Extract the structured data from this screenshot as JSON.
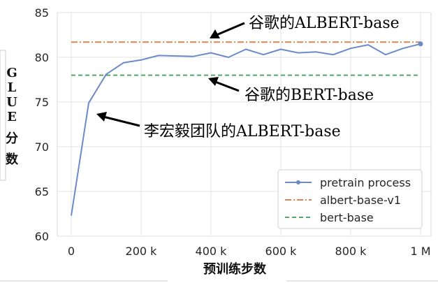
{
  "chart_data": {
    "type": "line",
    "xlabel": "预训练步数",
    "ylabel": "GLUE分数",
    "ylabel_chars": [
      "G",
      "L",
      "U",
      "E",
      "分",
      "数"
    ],
    "xlim": [
      -40000,
      1030000
    ],
    "ylim": [
      60,
      85
    ],
    "grid": true,
    "legend_position": "lower-right",
    "x_ticks": [
      0,
      200000,
      400000,
      600000,
      800000,
      1000000
    ],
    "x_tick_labels": [
      "0",
      "200 k",
      "400 k",
      "600 k",
      "800 k",
      "1 M"
    ],
    "y_ticks": [
      60,
      65,
      70,
      75,
      80,
      85
    ],
    "y_tick_labels": [
      "60",
      "65",
      "70",
      "75",
      "80",
      "85"
    ],
    "series": [
      {
        "name": "pretrain process",
        "style": "line-marker",
        "color": "#6a8bc7",
        "x": [
          0,
          50000,
          100000,
          150000,
          200000,
          250000,
          300000,
          350000,
          400000,
          450000,
          500000,
          550000,
          600000,
          650000,
          700000,
          750000,
          800000,
          850000,
          900000,
          950000,
          1000000
        ],
        "values": [
          62.3,
          74.9,
          78.1,
          79.4,
          79.7,
          80.2,
          80.15,
          80.1,
          80.5,
          80.0,
          80.9,
          80.3,
          80.9,
          80.5,
          80.6,
          80.3,
          81.0,
          81.4,
          80.3,
          81.0,
          81.5
        ]
      },
      {
        "name": "albert-base-v1",
        "style": "dash-dot",
        "color": "#dd8452",
        "value": 81.7
      },
      {
        "name": "bert-base",
        "style": "dashed",
        "color": "#55a868",
        "value": 78.0
      }
    ],
    "annotations": [
      {
        "text": "谷歌的ALBERT-base"
      },
      {
        "text": "谷歌的BERT-base"
      },
      {
        "text": "李宏毅团队的ALBERT-base"
      }
    ]
  }
}
